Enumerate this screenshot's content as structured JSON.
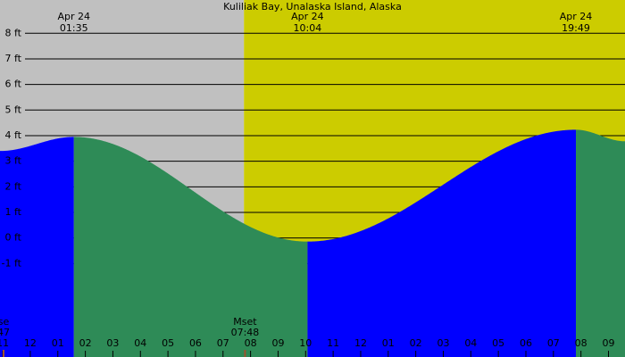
{
  "chart_data": {
    "type": "tide",
    "title": "Kuliliak Bay, Unalaska Island, Alaska",
    "xlim": [
      -1.1,
      21.6
    ],
    "ylim": [
      -4.65,
      9.3
    ],
    "yticks": [
      {
        "value": -1,
        "label": "-1 ft"
      },
      {
        "value": 0,
        "label": "0 ft"
      },
      {
        "value": 1,
        "label": "1 ft"
      },
      {
        "value": 2,
        "label": "2 ft"
      },
      {
        "value": 3,
        "label": "3 ft"
      },
      {
        "value": 4,
        "label": "4 ft"
      },
      {
        "value": 5,
        "label": "5 ft"
      },
      {
        "value": 6,
        "label": "6 ft"
      },
      {
        "value": 7,
        "label": "7 ft"
      },
      {
        "value": 8,
        "label": "8 ft"
      }
    ],
    "xticks": [
      {
        "value": -1,
        "label": "11"
      },
      {
        "value": 0,
        "label": "12"
      },
      {
        "value": 1,
        "label": "01"
      },
      {
        "value": 2,
        "label": "02"
      },
      {
        "value": 3,
        "label": "03"
      },
      {
        "value": 4,
        "label": "04"
      },
      {
        "value": 5,
        "label": "05"
      },
      {
        "value": 6,
        "label": "06"
      },
      {
        "value": 7,
        "label": "07"
      },
      {
        "value": 8,
        "label": "08"
      },
      {
        "value": 9,
        "label": "09"
      },
      {
        "value": 10,
        "label": "10"
      },
      {
        "value": 11,
        "label": "11"
      },
      {
        "value": 12,
        "label": "12"
      },
      {
        "value": 13,
        "label": "01"
      },
      {
        "value": 14,
        "label": "02"
      },
      {
        "value": 15,
        "label": "03"
      },
      {
        "value": 16,
        "label": "04"
      },
      {
        "value": 17,
        "label": "05"
      },
      {
        "value": 18,
        "label": "06"
      },
      {
        "value": 19,
        "label": "07"
      },
      {
        "value": 20,
        "label": "08"
      },
      {
        "value": 21,
        "label": "09"
      }
    ],
    "tide": {
      "x": [
        -1.1,
        1.583,
        10.067,
        19.817,
        21.6
      ],
      "values": [
        3.4,
        3.95,
        -0.14,
        4.23,
        3.78
      ]
    },
    "tide_labels": [
      {
        "date": "Apr 24",
        "time": "01:35",
        "hours": 1.583
      },
      {
        "date": "Apr 24",
        "time": "10:04",
        "hours": 10.067
      },
      {
        "date": "Apr 24",
        "time": "19:49",
        "hours": 19.817
      }
    ],
    "moon_events": [
      {
        "label": "se",
        "time": "47",
        "hours": -0.97
      },
      {
        "label": "Mset",
        "time": "07:48",
        "hours": 7.8
      }
    ],
    "daylight_start": 7.76,
    "night_color": "#c0c0c0",
    "day_color": "#cccc00",
    "rising_color": "#0000ff",
    "falling_color": "#2e8b57",
    "grid": true
  }
}
